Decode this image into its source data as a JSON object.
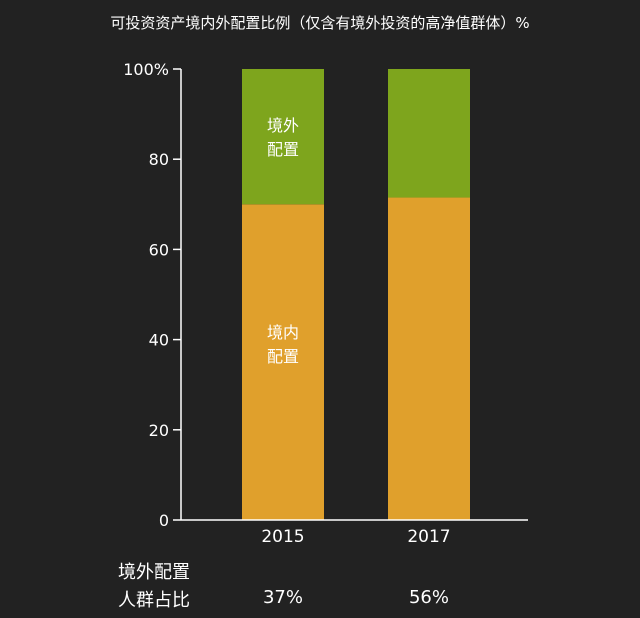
{
  "chart_data": {
    "type": "bar",
    "stacked": true,
    "title": "可投资资产境内外配置比例（仅含有境外投资的高净值群体）%",
    "categories": [
      "2015",
      "2017"
    ],
    "series": [
      {
        "name": "境内配置",
        "values": [
          70,
          71.5
        ],
        "color": "#E0A02C",
        "label_lines": [
          "境内",
          "配置"
        ]
      },
      {
        "name": "境外配置",
        "values": [
          30,
          28.5
        ],
        "color": "#7EA51D",
        "label_lines": [
          "境外",
          "配置"
        ]
      }
    ],
    "ylim": [
      0,
      100
    ],
    "yticks": [
      "0",
      "20",
      "40",
      "60",
      "80",
      "100%"
    ],
    "grid": false,
    "footer": {
      "label_lines": [
        "境外配置",
        "人群占比"
      ],
      "values": [
        "37%",
        "56%"
      ]
    }
  }
}
